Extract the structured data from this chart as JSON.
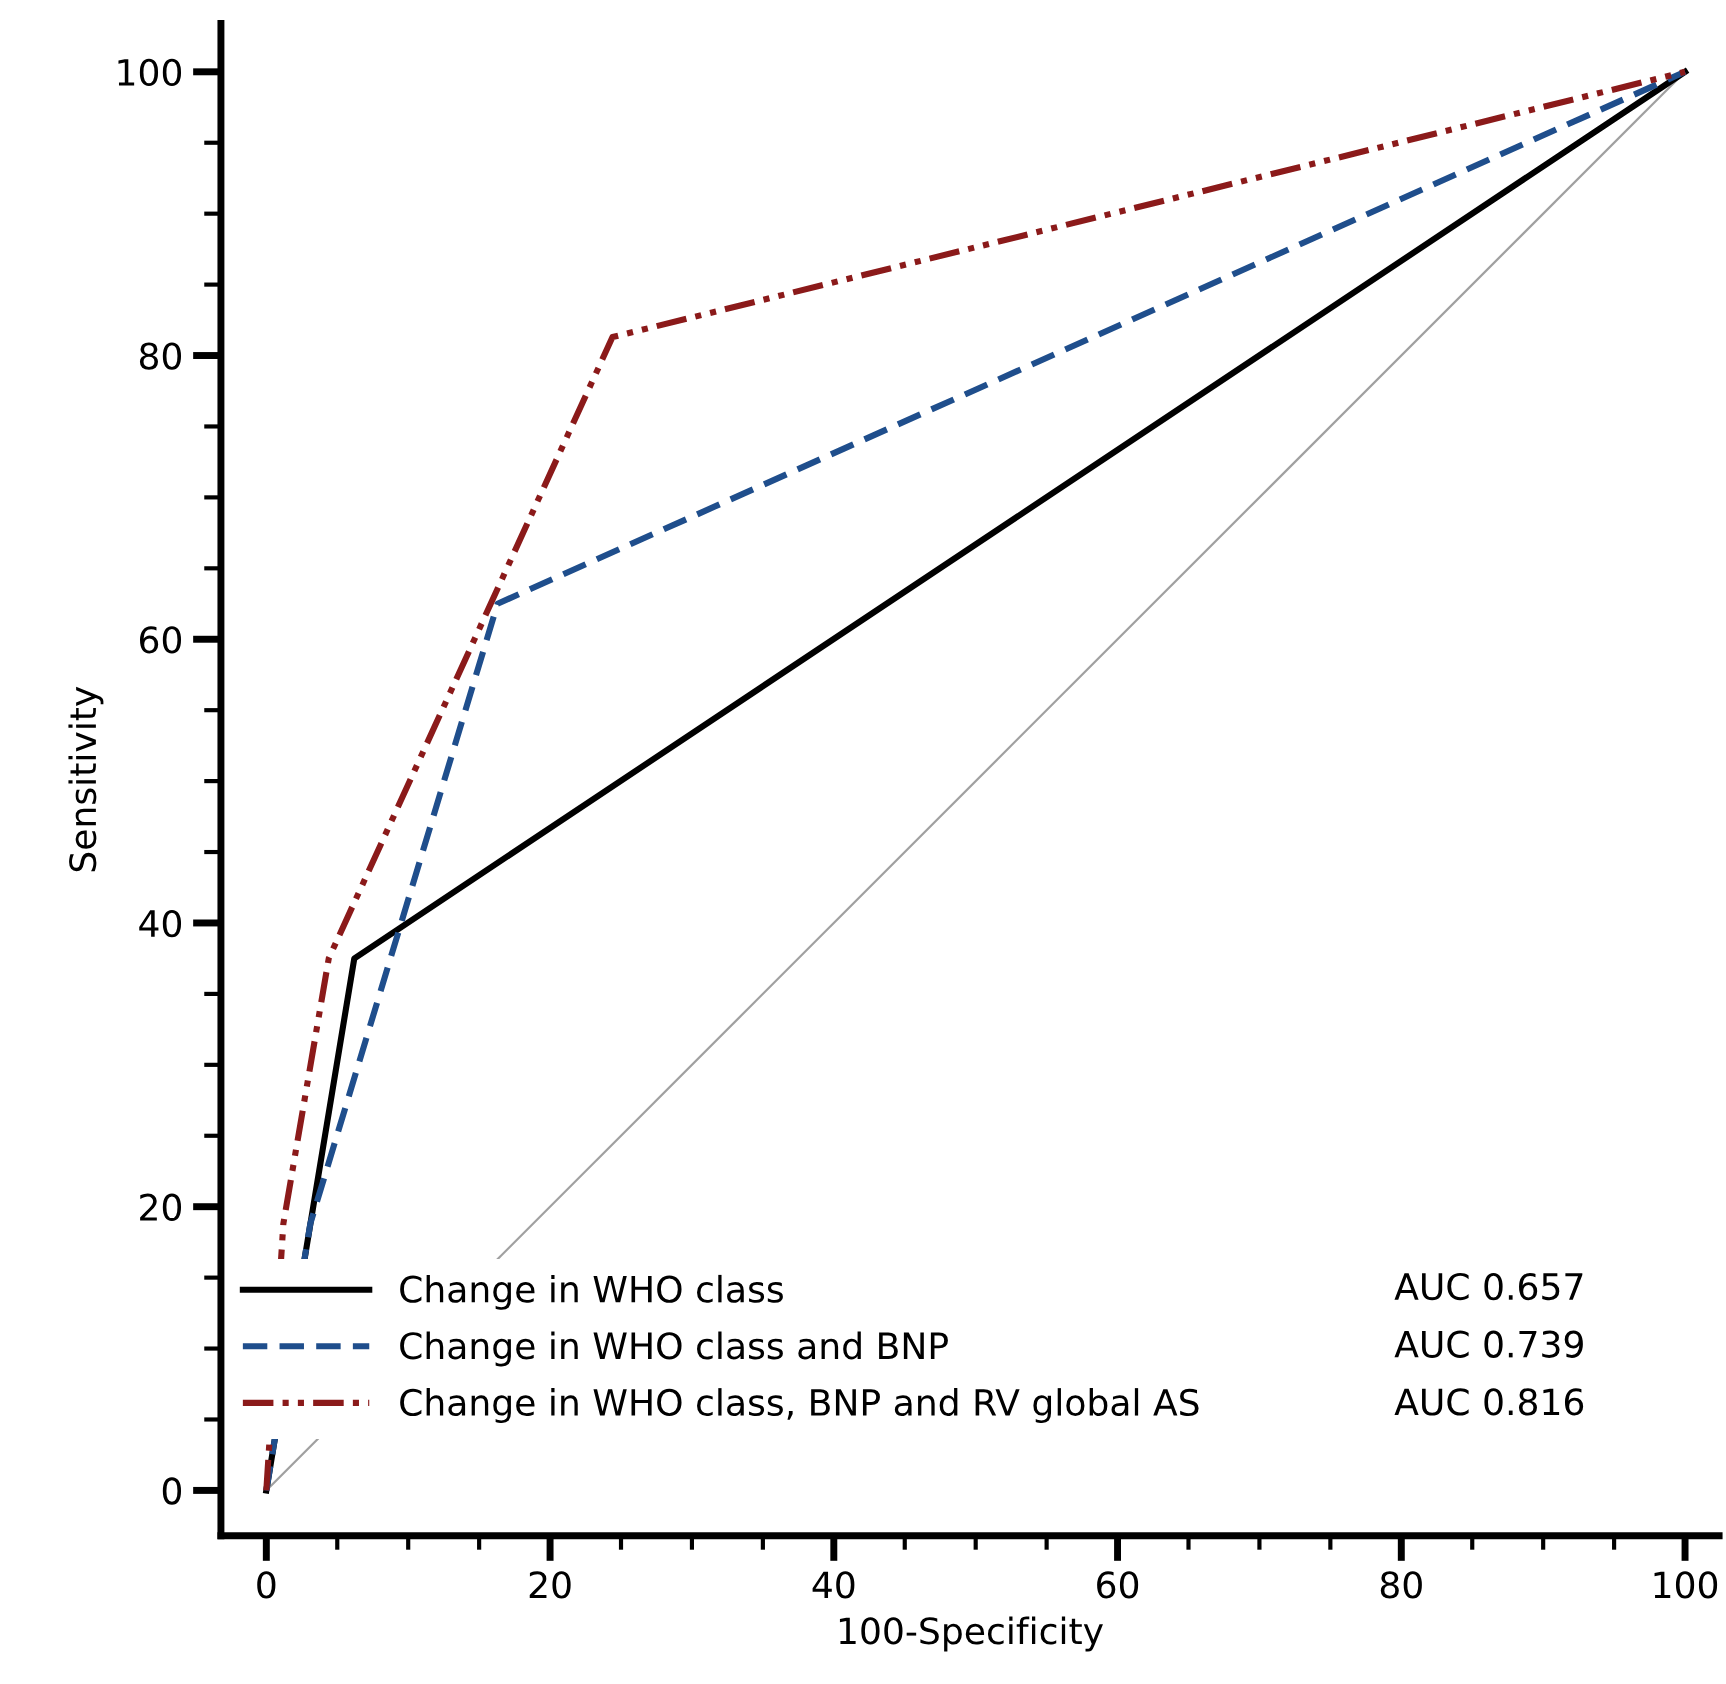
{
  "chart_data": {
    "type": "line",
    "xlabel": "100-Specificity",
    "ylabel": "Sensitivity",
    "xlim": [
      -3.2,
      102.4
    ],
    "ylim": [
      -3.2,
      103.4
    ],
    "xticks": [
      0,
      20,
      40,
      60,
      80,
      100
    ],
    "yticks": [
      0,
      20,
      40,
      60,
      80,
      100
    ],
    "grid": false,
    "legend": "bottom",
    "marker": "none",
    "series": [
      {
        "name": "Change in WHO class",
        "color": "#000000",
        "line_style": "solid",
        "x": [
          0,
          6.2,
          100
        ],
        "values": [
          0,
          37.5,
          100
        ]
      },
      {
        "name": "Change in WHO class and BNP",
        "color": "#1f4e8c",
        "line_style": "dashed",
        "x": [
          0,
          3.1,
          16.3,
          100
        ],
        "values": [
          0,
          18.8,
          62.5,
          100
        ]
      },
      {
        "name": "Change in WHO class, BNP and RV global AS",
        "color": "#8b1a1a",
        "line_style": "dashdotdot",
        "x": [
          0,
          1.2,
          4.4,
          24.4,
          100
        ],
        "values": [
          0,
          18.8,
          37.5,
          81.3,
          100
        ]
      },
      {
        "color": "#a0a0a0",
        "line_style": "solid",
        "x": [
          0,
          100
        ],
        "values": [
          0,
          100
        ]
      }
    ],
    "annotations": [
      "AUC 0.657",
      "AUC 0.739",
      "AUC 0.816"
    ]
  }
}
